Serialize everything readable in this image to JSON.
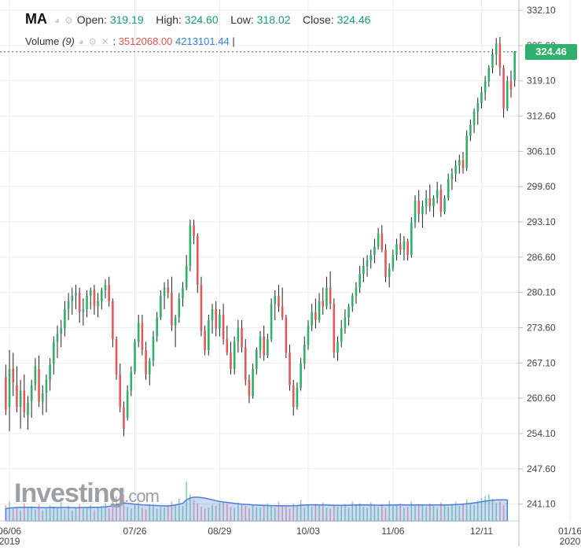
{
  "header": {
    "symbol": "MA",
    "open_label": "Open:",
    "open_value": "319.19",
    "high_label": "High:",
    "high_value": "324.60",
    "low_label": "Low:",
    "low_value": "318.02",
    "close_label": "Close:",
    "close_value": "324.46",
    "volume_label": "Volume",
    "volume_period": "(9)",
    "volume_value_1": "3512068.00",
    "volume_value_2": "4213101.44",
    "volume_cursor": "|"
  },
  "price_tag": "324.46",
  "logo": {
    "main": "Investing",
    "suffix": ".com"
  },
  "colors": {
    "up": "#2fb06c",
    "down": "#e05a5a",
    "volume_area": "#4a7fdc",
    "grid": "#ececec"
  },
  "chart_data": {
    "type": "ohlc",
    "title": "",
    "xlabel": "",
    "ylabel": "",
    "ylim": [
      238,
      334
    ],
    "y_ticks": [
      "332.10",
      "325.60",
      "319.10",
      "312.60",
      "306.10",
      "299.60",
      "293.10",
      "286.60",
      "280.10",
      "273.60",
      "267.10",
      "260.60",
      "254.10",
      "247.60",
      "241.10"
    ],
    "x_ticks": [
      {
        "label": "06/06",
        "sub": "2019",
        "index": 1
      },
      {
        "label": "07/26",
        "sub": "",
        "index": 35
      },
      {
        "label": "08/29",
        "sub": "",
        "index": 58
      },
      {
        "label": "10/03",
        "sub": "",
        "index": 82
      },
      {
        "label": "11/06",
        "sub": "",
        "index": 105
      },
      {
        "label": "12/11",
        "sub": "",
        "index": 129
      },
      {
        "label": "01/16",
        "sub": "2020",
        "index": 153
      }
    ],
    "last_close": 324.46,
    "candles": [
      [
        264.5,
        266.8,
        257.5,
        258.5
      ],
      [
        259,
        269.5,
        254.5,
        266
      ],
      [
        266,
        269,
        261,
        263.5
      ],
      [
        263,
        266.5,
        258,
        259
      ],
      [
        259,
        264,
        255,
        262
      ],
      [
        262,
        265,
        257,
        258
      ],
      [
        257.5,
        261,
        254.8,
        259.8
      ],
      [
        260,
        264,
        257,
        263
      ],
      [
        263,
        268,
        262,
        266.5
      ],
      [
        266,
        268.5,
        259,
        260
      ],
      [
        260,
        263,
        257.5,
        261.5
      ],
      [
        261.5,
        265,
        258,
        264
      ],
      [
        264,
        268,
        262,
        266.8
      ],
      [
        267,
        272,
        265,
        271
      ],
      [
        271,
        274,
        268,
        272.5
      ],
      [
        272.5,
        275,
        270,
        273.5
      ],
      [
        273.5,
        278.5,
        272,
        277
      ],
      [
        277,
        280,
        275,
        278.5
      ],
      [
        278.5,
        281,
        276,
        279.5
      ],
      [
        279.5,
        281.5,
        277,
        280
      ],
      [
        280,
        281,
        274.5,
        276.5
      ],
      [
        276.5,
        279,
        274,
        277
      ],
      [
        277,
        280.5,
        275.5,
        279.5
      ],
      [
        279.5,
        281,
        277,
        280.5
      ],
      [
        280.5,
        281.5,
        276,
        277.5
      ],
      [
        277.5,
        280,
        275.5,
        278.5
      ],
      [
        278.5,
        281,
        277,
        280.5
      ],
      [
        280.5,
        282.5,
        279,
        281.5
      ],
      [
        281.5,
        283,
        277.5,
        278.5
      ],
      [
        278.5,
        279,
        270,
        271.5
      ],
      [
        271.5,
        272,
        264,
        265
      ],
      [
        265,
        267,
        258,
        259
      ],
      [
        259,
        260,
        253.6,
        255
      ],
      [
        257,
        263,
        256.5,
        262
      ],
      [
        262,
        266.5,
        261,
        265.5
      ],
      [
        265.5,
        271.5,
        265,
        271
      ],
      [
        271,
        276,
        270,
        274.5
      ],
      [
        274.5,
        276,
        268.5,
        269.5
      ],
      [
        269.5,
        271,
        264,
        265
      ],
      [
        265,
        268,
        263,
        267.5
      ],
      [
        267.5,
        273,
        266.5,
        272
      ],
      [
        272,
        276.5,
        271,
        275.5
      ],
      [
        275.5,
        280.5,
        275,
        279.5
      ],
      [
        279.5,
        282,
        277,
        281
      ],
      [
        281,
        282.5,
        279,
        280
      ],
      [
        280,
        283,
        273,
        274
      ],
      [
        274,
        276,
        270,
        275.5
      ],
      [
        275.5,
        280,
        274.5,
        279
      ],
      [
        279,
        282,
        277.5,
        281
      ],
      [
        281,
        287,
        280.5,
        285
      ],
      [
        285,
        293.5,
        284,
        292.5
      ],
      [
        292.5,
        293.5,
        289,
        290.5
      ],
      [
        290.5,
        291,
        280,
        281.5
      ],
      [
        281.5,
        283,
        272,
        273
      ],
      [
        273,
        274,
        268.5,
        269.5
      ],
      [
        269.5,
        276,
        268.5,
        275
      ],
      [
        275,
        278,
        272.5,
        277
      ],
      [
        277,
        278.5,
        272,
        273.5
      ],
      [
        273.5,
        277,
        272,
        276
      ],
      [
        276,
        278,
        270.5,
        271.5
      ],
      [
        271.5,
        274,
        268.5,
        269
      ],
      [
        269,
        271,
        265,
        266
      ],
      [
        266,
        272,
        265,
        271
      ],
      [
        271,
        275,
        269,
        273.5
      ],
      [
        273.5,
        275,
        269,
        270
      ],
      [
        270,
        271.5,
        263,
        264
      ],
      [
        264,
        265,
        259.7,
        261
      ],
      [
        261,
        267,
        260.5,
        266
      ],
      [
        266,
        270,
        265,
        269.5
      ],
      [
        269.5,
        273,
        268,
        272
      ],
      [
        272,
        274,
        267.5,
        268.5
      ],
      [
        268.5,
        272.5,
        268,
        271.5
      ],
      [
        271.5,
        279,
        271,
        278
      ],
      [
        278,
        280.5,
        275,
        279.5
      ],
      [
        279.5,
        281.5,
        276.5,
        277.5
      ],
      [
        277.5,
        281,
        275,
        275.5
      ],
      [
        275.5,
        276,
        268,
        269
      ],
      [
        269,
        270.5,
        262,
        263
      ],
      [
        263,
        264,
        257.4,
        259
      ],
      [
        259,
        263.5,
        258.5,
        262.5
      ],
      [
        262.5,
        268,
        262,
        267
      ],
      [
        267,
        272,
        266,
        270.5
      ],
      [
        270.5,
        275,
        269.5,
        274
      ],
      [
        274,
        278,
        273,
        276.5
      ],
      [
        276.5,
        279,
        273.5,
        275
      ],
      [
        275,
        280,
        274.5,
        278.5
      ],
      [
        278.5,
        281,
        276,
        277.5
      ],
      [
        277.5,
        283,
        277,
        281
      ],
      [
        281,
        284,
        277,
        278
      ],
      [
        278,
        279,
        268,
        269
      ],
      [
        269,
        272,
        267.5,
        271
      ],
      [
        271,
        275,
        270,
        273.5
      ],
      [
        273.5,
        277,
        272.5,
        275.5
      ],
      [
        275.5,
        278,
        274,
        277.5
      ],
      [
        277.5,
        280,
        276.5,
        279.5
      ],
      [
        279.5,
        282,
        278,
        281
      ],
      [
        281,
        285,
        280,
        283.5
      ],
      [
        283.5,
        286.5,
        282,
        285
      ],
      [
        285,
        287,
        283,
        286
      ],
      [
        286,
        288,
        284.5,
        287
      ],
      [
        287,
        290,
        285.5,
        288.5
      ],
      [
        288.5,
        292,
        288,
        291
      ],
      [
        291,
        292.5,
        287.5,
        288
      ],
      [
        288,
        289,
        282,
        283
      ],
      [
        283,
        285.5,
        281,
        284.5
      ],
      [
        284.5,
        288,
        284,
        287
      ],
      [
        287,
        290,
        286,
        289
      ],
      [
        289,
        291,
        287,
        288
      ],
      [
        288,
        290.5,
        286,
        289.5
      ],
      [
        289.5,
        290,
        286,
        287
      ],
      [
        287,
        294,
        286.5,
        293
      ],
      [
        293,
        298,
        292,
        297
      ],
      [
        297,
        299,
        293,
        294.5
      ],
      [
        294.5,
        297,
        292,
        296
      ],
      [
        296,
        299,
        294.5,
        297.5
      ],
      [
        297.5,
        300,
        295,
        296
      ],
      [
        296,
        298,
        294,
        297.5
      ],
      [
        297.5,
        300.5,
        296.5,
        299
      ],
      [
        299,
        300,
        294,
        295
      ],
      [
        295,
        298,
        294.5,
        297.5
      ],
      [
        297.5,
        302,
        297,
        301
      ],
      [
        301,
        303,
        299,
        302
      ],
      [
        302,
        304.5,
        300.5,
        303.5
      ],
      [
        303.5,
        305.5,
        302,
        304.5
      ],
      [
        304.5,
        306,
        302,
        303
      ],
      [
        303,
        310,
        302.5,
        309
      ],
      [
        309,
        312,
        308,
        311
      ],
      [
        311,
        314,
        309.5,
        313.5
      ],
      [
        313.5,
        316,
        311,
        315
      ],
      [
        315,
        318,
        314,
        317
      ],
      [
        317,
        320,
        315.5,
        319
      ],
      [
        319,
        322,
        318,
        321.5
      ],
      [
        321.5,
        325,
        320.5,
        324
      ],
      [
        324,
        327,
        322,
        326
      ],
      [
        326,
        327.2,
        320,
        321.5
      ],
      [
        321.5,
        322,
        312.3,
        314
      ],
      [
        314,
        320,
        313.5,
        319
      ],
      [
        319,
        321,
        316,
        317.5
      ],
      [
        319.2,
        324.6,
        318,
        324.46
      ]
    ],
    "volume": {
      "ylim": [
        0,
        60
      ],
      "bars": [
        18,
        22,
        14,
        16,
        12,
        20,
        15,
        17,
        13,
        19,
        12,
        14,
        18,
        16,
        15,
        21,
        13,
        17,
        12,
        15,
        19,
        14,
        16,
        18,
        12,
        15,
        17,
        20,
        14,
        24,
        28,
        22,
        30,
        16,
        14,
        18,
        21,
        15,
        13,
        19,
        17,
        14,
        16,
        15,
        18,
        22,
        19,
        25,
        17,
        45,
        30,
        24,
        20,
        16,
        14,
        15,
        18,
        17,
        20,
        22,
        19,
        16,
        15,
        21,
        18,
        17,
        14,
        19,
        16,
        15,
        18,
        20,
        17,
        15,
        22,
        18,
        16,
        14,
        20,
        17,
        24,
        15,
        18,
        16,
        19,
        17,
        21,
        15,
        14,
        18,
        16,
        17,
        19,
        15,
        22,
        18,
        20,
        16,
        15,
        21,
        17,
        16,
        19,
        15,
        23,
        17,
        18,
        20,
        15,
        16,
        22,
        17,
        19,
        18,
        16,
        20,
        17,
        15,
        21,
        19,
        16,
        18,
        22,
        17,
        20,
        24,
        19,
        18,
        23,
        26,
        28,
        30,
        25,
        20,
        22,
        18
      ],
      "avg": [
        14,
        14.5,
        15,
        15.2,
        15.5,
        15.6,
        15.5,
        15.4,
        15.3,
        15.2,
        15.1,
        15,
        15.2,
        15.3,
        15.2,
        15.3,
        15.3,
        15.2,
        15.1,
        15,
        15.1,
        15.2,
        15.3,
        15.4,
        15.4,
        15.5,
        15.7,
        16,
        16.5,
        17.5,
        18.5,
        19.5,
        20.5,
        20,
        19.5,
        19,
        18.5,
        18.2,
        18,
        17.8,
        17.6,
        17.4,
        17.2,
        17,
        17,
        17.5,
        18,
        19,
        20,
        24,
        26,
        27,
        27,
        26.5,
        26,
        25,
        24,
        23,
        22,
        21.5,
        21,
        20.5,
        20,
        19.5,
        19,
        18.8,
        18.5,
        18.2,
        18,
        17.8,
        17.6,
        17.5,
        17.4,
        17.3,
        17.3,
        17.2,
        17.1,
        17,
        17.2,
        17.4,
        17.8,
        18,
        18.2,
        18.3,
        18.3,
        18.2,
        18.1,
        18,
        17.9,
        17.8,
        17.7,
        17.7,
        17.8,
        17.8,
        18,
        18.2,
        18.3,
        18.2,
        18.1,
        18,
        17.9,
        17.8,
        17.8,
        17.9,
        18,
        18.1,
        18.2,
        18.3,
        18.2,
        18.1,
        18,
        18.1,
        18.2,
        18.1,
        18,
        18,
        18.1,
        18.2,
        18.1,
        18,
        18.2,
        18.4,
        18.6,
        18.8,
        19,
        19.5,
        20,
        20.5,
        21,
        21.8,
        22.5,
        23,
        23.5,
        23.8,
        24,
        24,
        23.8
      ]
    }
  }
}
